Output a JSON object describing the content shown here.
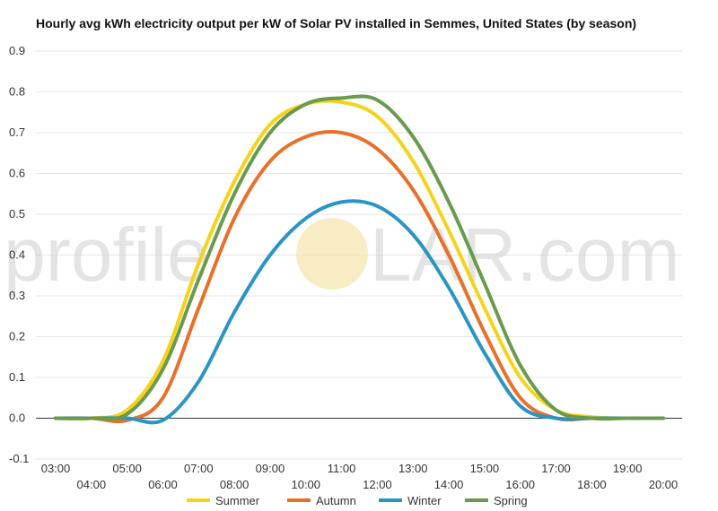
{
  "watermark": {
    "text_left": "profile",
    "text_right": "LAR.com",
    "sun_color": "#f6e6b0"
  },
  "chart_data": {
    "type": "line",
    "title": "Hourly avg kWh electricity output per kW of Solar PV installed in Semmes, United States (by season)",
    "xlabel": "",
    "ylabel": "",
    "x": [
      "03:00",
      "04:00",
      "05:00",
      "06:00",
      "07:00",
      "08:00",
      "09:00",
      "10:00",
      "11:00",
      "12:00",
      "13:00",
      "14:00",
      "15:00",
      "16:00",
      "17:00",
      "18:00",
      "19:00",
      "20:00"
    ],
    "x_tick_labels_upper": [
      "03:00",
      "05:00",
      "07:00",
      "09:00",
      "11:00",
      "13:00",
      "15:00",
      "17:00",
      "19:00"
    ],
    "x_tick_labels_lower": [
      "04:00",
      "06:00",
      "08:00",
      "10:00",
      "12:00",
      "14:00",
      "16:00",
      "18:00",
      "20:00"
    ],
    "ylim": [
      -0.1,
      0.9
    ],
    "yticks": [
      "-0.1",
      "0.0",
      "0.1",
      "0.2",
      "0.3",
      "0.4",
      "0.5",
      "0.6",
      "0.7",
      "0.8",
      "0.9"
    ],
    "ytick_values": [
      -0.1,
      0.0,
      0.1,
      0.2,
      0.3,
      0.4,
      0.5,
      0.6,
      0.7,
      0.8,
      0.9
    ],
    "grid": true,
    "legend": "bottom",
    "series": [
      {
        "name": "Summer",
        "color": "#f5d31a",
        "values": [
          0.0,
          0.0,
          0.02,
          0.14,
          0.38,
          0.58,
          0.72,
          0.77,
          0.775,
          0.74,
          0.63,
          0.46,
          0.27,
          0.1,
          0.02,
          0.003,
          0.0,
          0.0
        ]
      },
      {
        "name": "Autumn",
        "color": "#e8702a",
        "values": [
          0.0,
          0.0,
          -0.005,
          0.05,
          0.27,
          0.49,
          0.63,
          0.69,
          0.7,
          0.66,
          0.56,
          0.4,
          0.21,
          0.05,
          0.0,
          0.0,
          0.0,
          0.0
        ]
      },
      {
        "name": "Winter",
        "color": "#2a95c4",
        "values": [
          0.0,
          0.0,
          0.0,
          -0.005,
          0.09,
          0.26,
          0.4,
          0.49,
          0.53,
          0.52,
          0.45,
          0.32,
          0.16,
          0.03,
          0.0,
          0.0,
          0.0,
          0.0
        ]
      },
      {
        "name": "Spring",
        "color": "#6a9a4e",
        "values": [
          0.0,
          0.0,
          0.01,
          0.12,
          0.34,
          0.55,
          0.7,
          0.77,
          0.785,
          0.78,
          0.69,
          0.53,
          0.33,
          0.13,
          0.02,
          0.0,
          0.0,
          0.0
        ]
      }
    ]
  }
}
